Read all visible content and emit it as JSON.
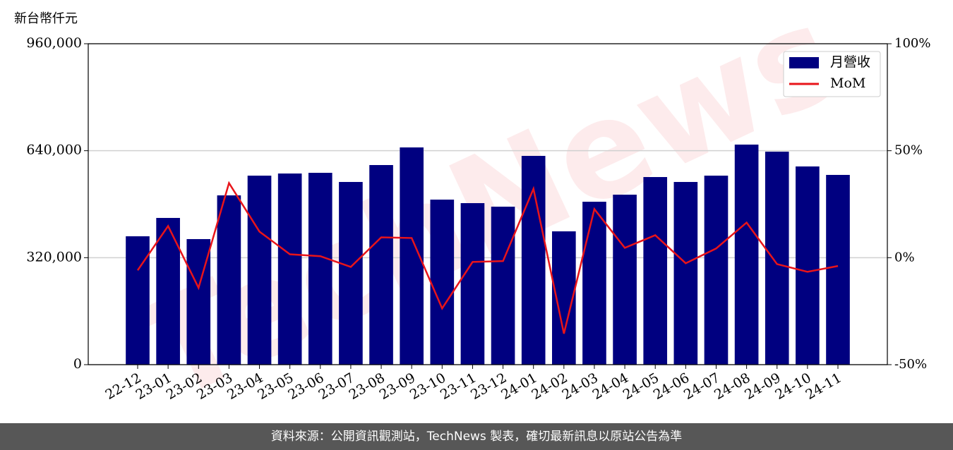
{
  "chart_data": {
    "type": "bar",
    "y_label": "新台幣仟元",
    "watermark": "TechNews",
    "footer": "資料來源：公開資訊觀測站，TechNews 製表，確切最新訊息以原站公告為準",
    "categories": [
      "22-12",
      "23-01",
      "23-02",
      "23-03",
      "23-04",
      "23-05",
      "23-06",
      "23-07",
      "23-08",
      "23-09",
      "23-10",
      "23-11",
      "23-12",
      "24-01",
      "24-02",
      "24-03",
      "24-04",
      "24-05",
      "24-06",
      "24-07",
      "24-08",
      "24-09",
      "24-10",
      "24-11"
    ],
    "series": [
      {
        "name": "月營收",
        "type": "bar",
        "color": "#000080",
        "values": [
          384000,
          438900,
          375600,
          506400,
          565400,
          571800,
          573900,
          546500,
          597100,
          649800,
          493700,
          483200,
          472600,
          624500,
          398800,
          487400,
          508500,
          561200,
          546500,
          565400,
          658300,
          637200,
          592900,
          567600
        ]
      },
      {
        "name": "MoM",
        "type": "line",
        "axis": "y2",
        "color": "#e8141a",
        "values": [
          -5.9,
          14.8,
          -14.1,
          34.9,
          12.2,
          1.6,
          0.7,
          -4.3,
          9.5,
          9.2,
          -23.7,
          -2.0,
          -1.6,
          32.2,
          -35.5,
          22.7,
          4.6,
          10.5,
          -2.6,
          4.3,
          16.4,
          -3.0,
          -6.6,
          -3.9
        ]
      }
    ],
    "ylim": [
      0,
      960000
    ],
    "yticks": [
      0,
      {
        "value": 320000,
        "label": "320,000"
      },
      {
        "value": 640000,
        "label": "640,000"
      },
      {
        "value": 960000,
        "label": "960,000"
      }
    ],
    "y2lim": [
      -50,
      100
    ],
    "y2ticks": [
      {
        "value": -50,
        "label": "-50%"
      },
      {
        "value": 0,
        "label": "0%"
      },
      {
        "value": 50,
        "label": "50%"
      },
      {
        "value": 100,
        "label": "100%"
      }
    ],
    "grid": true,
    "legend": "upper right"
  }
}
